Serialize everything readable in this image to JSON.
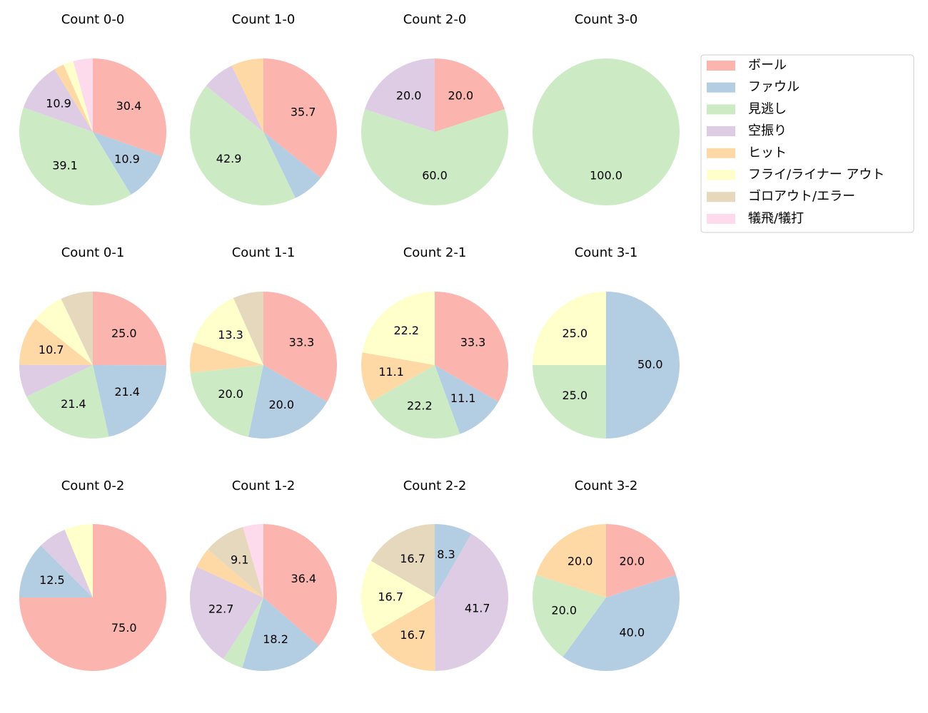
{
  "legend": {
    "labels": [
      "ボール",
      "ファウル",
      "見逃し",
      "空振り",
      "ヒット",
      "フライ/ライナー アウト",
      "ゴロアウト/エラー",
      "犠飛/犠打"
    ],
    "colors": [
      "#fbb4ae",
      "#b3cde3",
      "#ccebc5",
      "#decbe4",
      "#fed9a6",
      "#ffffcc",
      "#e5d8bd",
      "#fddaec"
    ]
  },
  "chart_data": [
    {
      "type": "pie",
      "title": "Count 0-0",
      "values": [
        30.4,
        10.9,
        39.1,
        10.9,
        2.2,
        2.2,
        0,
        4.3
      ],
      "value_labels": [
        "30.4",
        "10.9",
        "39.1",
        "10.9",
        null,
        null,
        null,
        null
      ]
    },
    {
      "type": "pie",
      "title": "Count 1-0",
      "values": [
        35.7,
        7.1,
        42.9,
        7.1,
        7.1,
        0,
        0,
        0
      ],
      "value_labels": [
        "35.7",
        null,
        "42.9",
        null,
        null,
        null,
        null,
        null
      ]
    },
    {
      "type": "pie",
      "title": "Count 2-0",
      "values": [
        20,
        0,
        60,
        20,
        0,
        0,
        0,
        0
      ],
      "value_labels": [
        "20.0",
        null,
        "60.0",
        "20.0",
        null,
        null,
        null,
        null
      ]
    },
    {
      "type": "pie",
      "title": "Count 3-0",
      "values": [
        0,
        0,
        100,
        0,
        0,
        0,
        0,
        0
      ],
      "value_labels": [
        null,
        null,
        "100.0",
        null,
        null,
        null,
        null,
        null
      ]
    },
    {
      "type": "pie",
      "title": "Count 0-1",
      "values": [
        25,
        21.4,
        21.4,
        7.1,
        10.7,
        7.1,
        7.1,
        0
      ],
      "value_labels": [
        "25.0",
        "21.4",
        "21.4",
        null,
        "10.7",
        null,
        null,
        null
      ]
    },
    {
      "type": "pie",
      "title": "Count 1-1",
      "values": [
        33.3,
        20,
        20,
        0,
        6.7,
        13.3,
        6.7,
        0
      ],
      "value_labels": [
        "33.3",
        "20.0",
        "20.0",
        null,
        null,
        "13.3",
        null,
        null
      ]
    },
    {
      "type": "pie",
      "title": "Count 2-1",
      "values": [
        33.3,
        11.1,
        22.2,
        0,
        11.1,
        22.2,
        0,
        0
      ],
      "value_labels": [
        "33.3",
        "11.1",
        "22.2",
        null,
        "11.1",
        "22.2",
        null,
        null
      ]
    },
    {
      "type": "pie",
      "title": "Count 3-1",
      "values": [
        0,
        50,
        25,
        0,
        0,
        25,
        0,
        0
      ],
      "value_labels": [
        null,
        "50.0",
        "25.0",
        null,
        null,
        "25.0",
        null,
        null
      ]
    },
    {
      "type": "pie",
      "title": "Count 0-2",
      "values": [
        75,
        12.5,
        0,
        6.25,
        0,
        6.25,
        0,
        0
      ],
      "value_labels": [
        "75.0",
        "12.5",
        null,
        null,
        null,
        null,
        null,
        null
      ]
    },
    {
      "type": "pie",
      "title": "Count 1-2",
      "values": [
        36.4,
        18.2,
        4.5,
        22.7,
        4.5,
        0,
        9.1,
        4.5
      ],
      "value_labels": [
        "36.4",
        "18.2",
        null,
        "22.7",
        null,
        null,
        "9.1",
        null
      ]
    },
    {
      "type": "pie",
      "title": "Count 2-2",
      "values": [
        0,
        8.3,
        0,
        41.7,
        16.7,
        16.7,
        16.7,
        0
      ],
      "value_labels": [
        null,
        "8.3",
        null,
        "41.7",
        "16.7",
        "16.7",
        "16.7",
        null
      ]
    },
    {
      "type": "pie",
      "title": "Count 3-2",
      "values": [
        20,
        40,
        20,
        0,
        20,
        0,
        0,
        0
      ],
      "value_labels": [
        "20.0",
        "40.0",
        "20.0",
        null,
        "20.0",
        null,
        null,
        null
      ]
    }
  ]
}
